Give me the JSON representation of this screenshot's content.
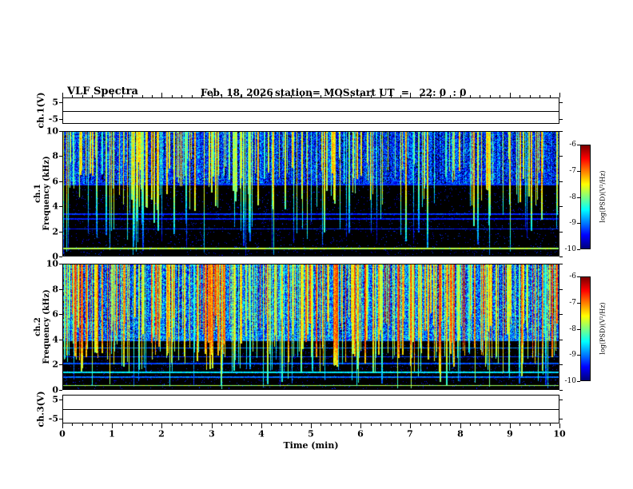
{
  "header": {
    "title": "VLF Spectra",
    "date": "Feb. 18, 2026",
    "station": "station= MOS",
    "start_ut": "start UT  =   22: 0  : 0"
  },
  "chart_data": [
    {
      "panel": "ch1-voltage-strip",
      "type": "line",
      "ylabel": "ch.1(V)",
      "ylim": [
        -5,
        5
      ],
      "yticks": [
        5,
        -5
      ],
      "xlim": [
        0,
        10
      ],
      "signal": "flat",
      "signal_value": 0
    },
    {
      "panel": "ch1-spectrogram",
      "type": "heatmap",
      "ylabel_lines": [
        "ch.1",
        "Frequency (kHz)"
      ],
      "ylim": [
        0,
        10
      ],
      "yticks": [
        10,
        8,
        6,
        4,
        2,
        0
      ],
      "xlim": [
        0,
        10
      ],
      "colorbar": {
        "label": "log(PSD)(V²/Hz)",
        "ticks": [
          -6,
          -7,
          -8,
          -9,
          -10
        ],
        "range": [
          -10,
          -6
        ]
      },
      "content": {
        "description": "Impulsive broadband VLF activity (sferics) filling ~5.8-10 kHz with dense vertical streaks, some extending to 0 kHz; bright narrowband line near 0.6 kHz and faint lines near 2.2, 3.0, 3.4 and 5.8 kHz",
        "noise_band_khz": [
          5.8,
          10
        ],
        "background_psd": -9.4,
        "bg_jitter": 1.4,
        "streaks": {
          "count": 230,
          "psd": [
            -8.4,
            -7.2
          ],
          "fade": 0.3
        },
        "horizontal_lines": [
          {
            "f_khz": 0.6,
            "psd": -7.8
          },
          {
            "f_khz": 5.75,
            "psd": -9.3
          },
          {
            "f_khz": 3.35,
            "psd": -9.35
          },
          {
            "f_khz": 2.95,
            "psd": -9.45
          },
          {
            "f_khz": 2.15,
            "psd": -9.4
          }
        ],
        "seed": 1318
      }
    },
    {
      "panel": "ch2-spectrogram",
      "type": "heatmap",
      "ylabel_lines": [
        "ch.2",
        "Frequency (kHz)"
      ],
      "ylim": [
        0,
        10
      ],
      "yticks": [
        10,
        8,
        6,
        4,
        2,
        0
      ],
      "xlim": [
        0,
        10
      ],
      "colorbar": {
        "label": "log(PSD)(V²/Hz)",
        "ticks": [
          -6,
          -7,
          -8,
          -9,
          -10
        ],
        "range": [
          -10,
          -6
        ]
      },
      "content": {
        "description": "Denser, stronger activity than ch.1 filling ~3.9-10 kHz with green/yellow streaks, many reaching 0 kHz; narrowband lines near 0.3, 1.0, 1.35, 2.1, 2.6, 3.3, 3.9 and 4.25 kHz",
        "noise_band_khz": [
          3.9,
          10
        ],
        "background_psd": -9.1,
        "bg_jitter": 1.6,
        "streaks": {
          "count": 370,
          "psd": [
            -8.3,
            -6.7
          ],
          "fade": 0.35
        },
        "horizontal_lines": [
          {
            "f_khz": 0.3,
            "psd": -7.9
          },
          {
            "f_khz": 0.95,
            "psd": -9.1
          },
          {
            "f_khz": 1.35,
            "psd": -8.6
          },
          {
            "f_khz": 2.05,
            "psd": -9.2
          },
          {
            "f_khz": 2.6,
            "psd": -9.3
          },
          {
            "f_khz": 3.3,
            "psd": -9.0
          },
          {
            "f_khz": 3.9,
            "psd": -9.1
          },
          {
            "f_khz": 4.25,
            "psd": -9.15
          }
        ],
        "seed": 2226
      }
    },
    {
      "panel": "ch3-voltage-strip",
      "type": "line",
      "ylabel": "ch.3(V)",
      "ylim": [
        -5,
        5
      ],
      "yticks": [
        5,
        -5
      ],
      "xlim": [
        0,
        10
      ],
      "signal": "flat",
      "signal_value": 0
    },
    {
      "panel": "time-axis",
      "type": "axis",
      "label": "Time (min)",
      "ticks": [
        0,
        1,
        2,
        3,
        4,
        5,
        6,
        7,
        8,
        9,
        10
      ],
      "xlim": [
        0,
        10
      ],
      "minor_step": 0.2
    }
  ]
}
